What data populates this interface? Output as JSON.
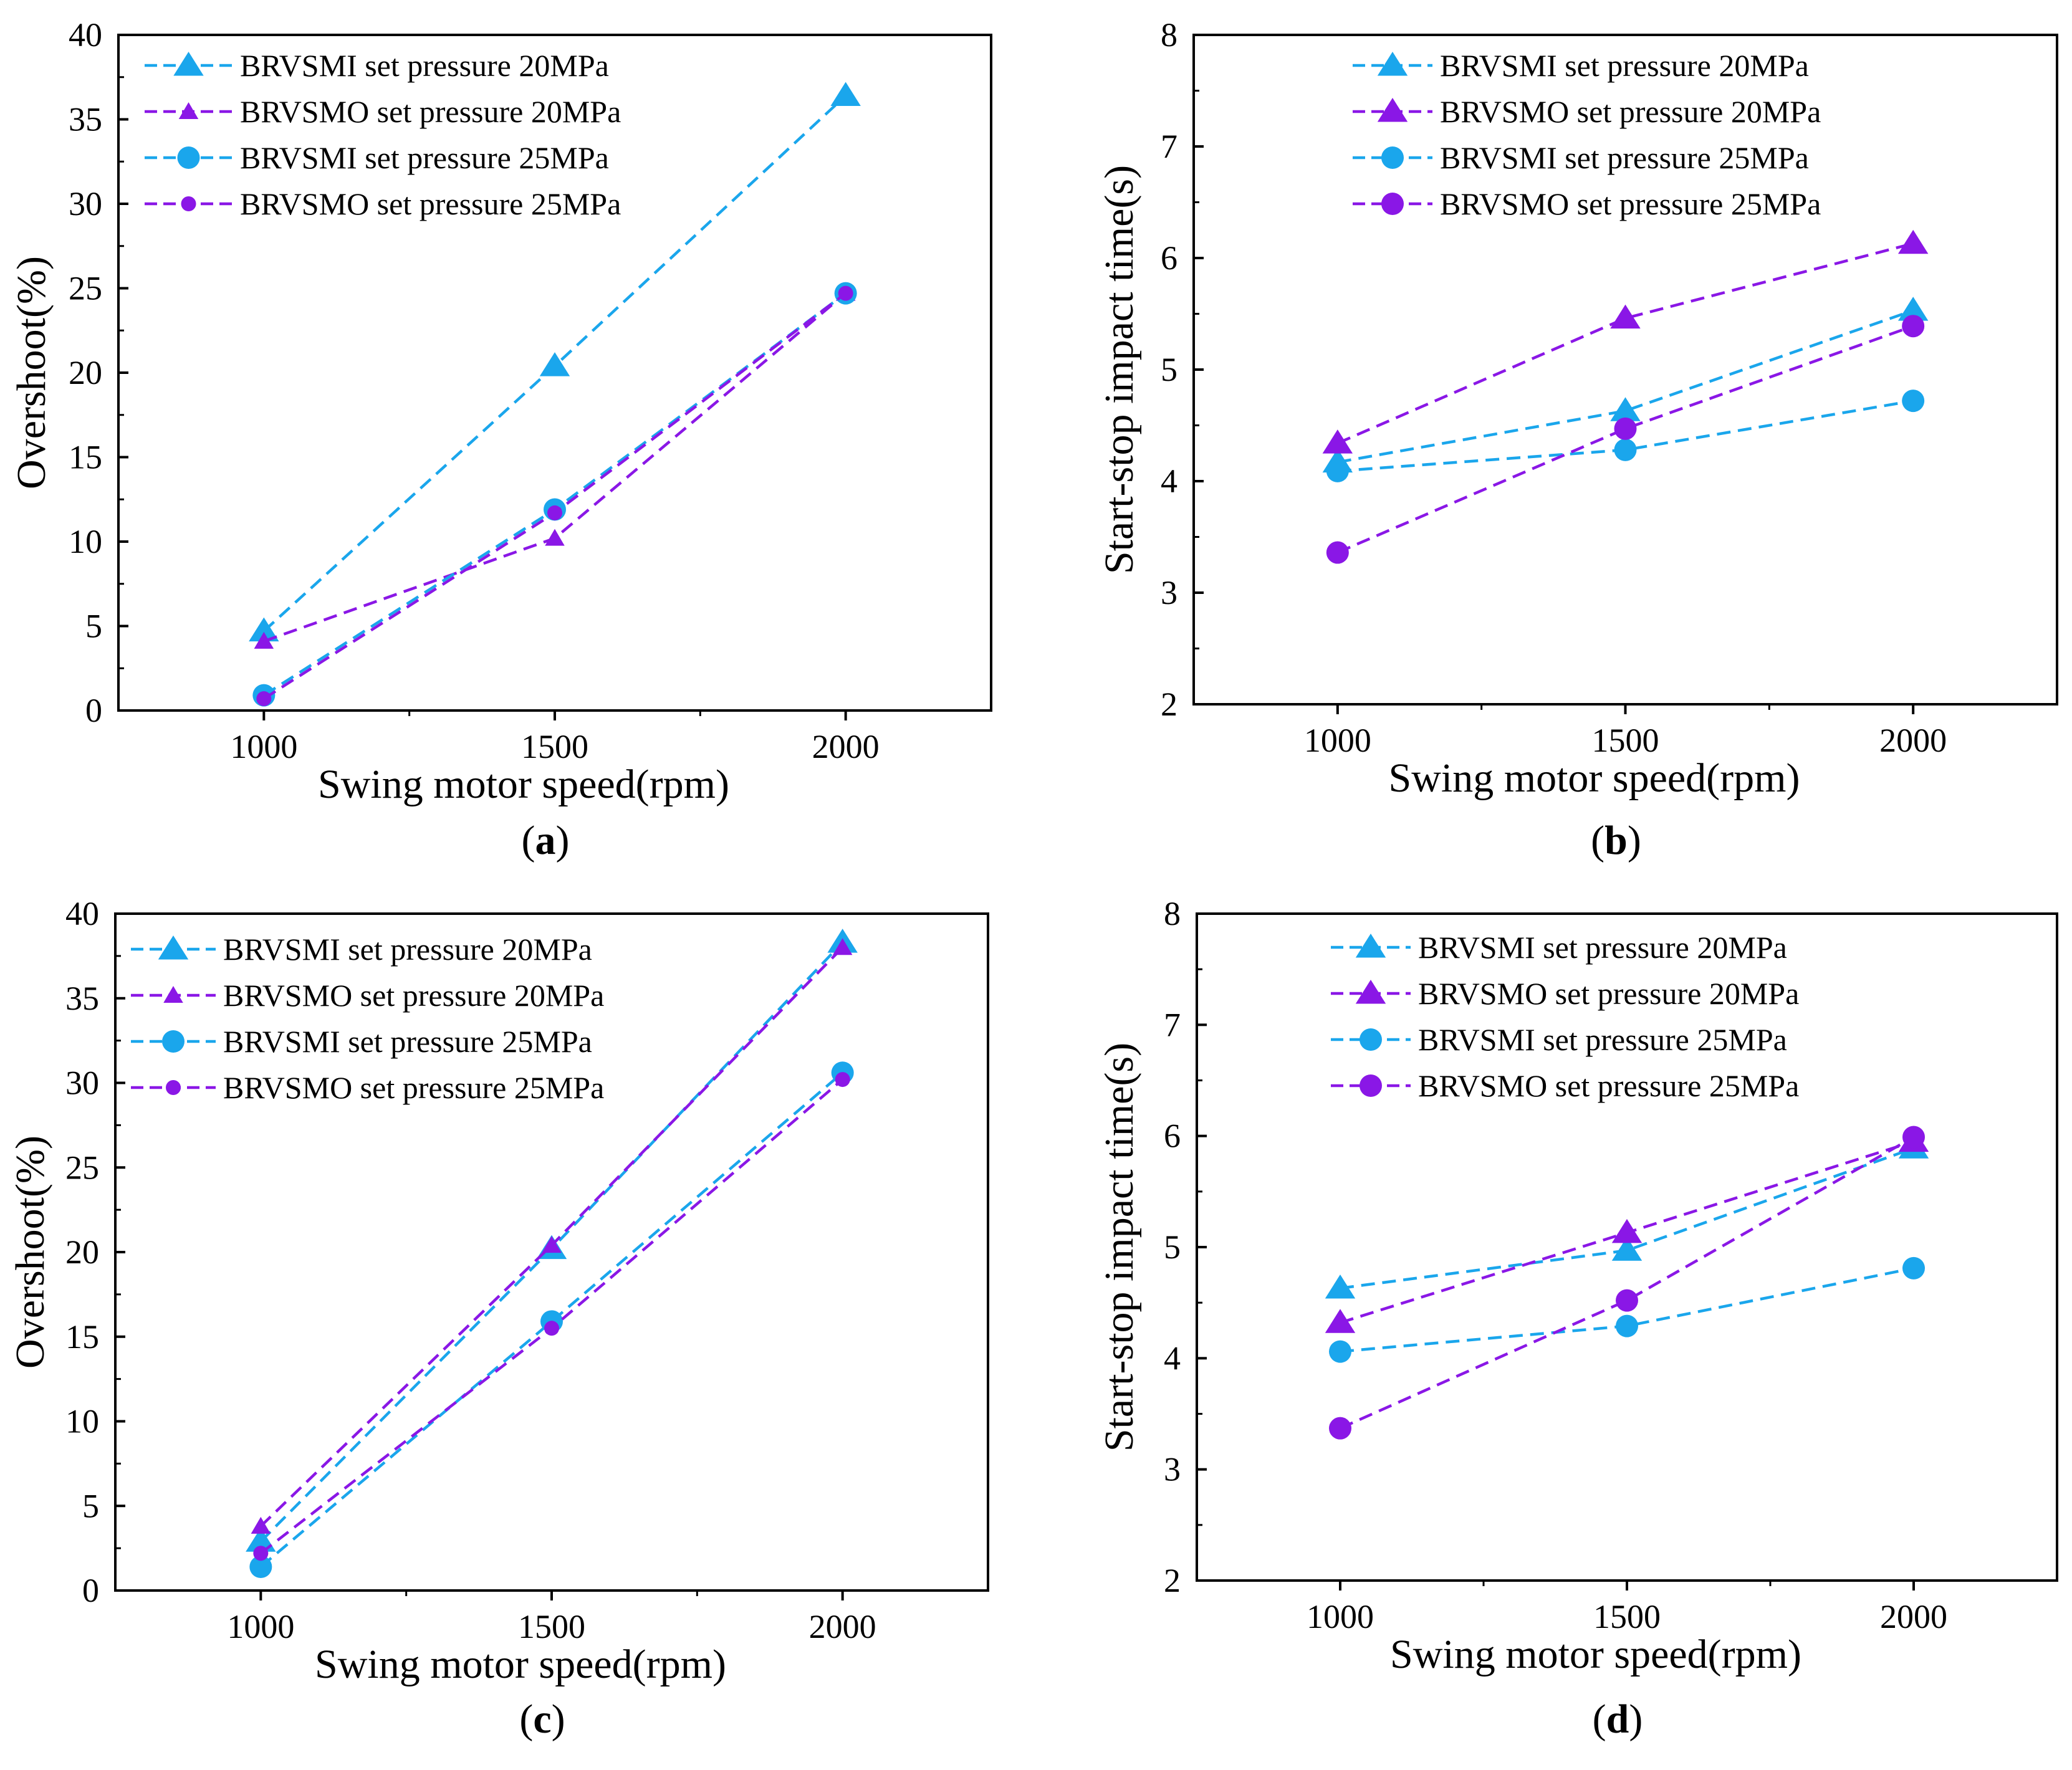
{
  "figure": {
    "colors": {
      "cyan": "#1aa6ec",
      "purple": "#8a17e6"
    },
    "chart_data": [
      {
        "id": "a",
        "type": "line",
        "panel_label": "a",
        "xlabel": "Swing motor speed(rpm)",
        "ylabel": "Overshoot(%)",
        "xlim": [
          750,
          2250
        ],
        "ylim": [
          0,
          40
        ],
        "xticks": [
          1000,
          1500,
          2000
        ],
        "yticks": [
          0,
          5,
          10,
          15,
          20,
          25,
          30,
          35,
          40
        ],
        "legend_position": "top-left",
        "series": [
          {
            "name": "BRVSMI set pressure 20MPa",
            "color": "cyan",
            "marker": "triangle",
            "x": [
              1000,
              1500,
              2000
            ],
            "values": [
              4.7,
              20.4,
              36.4
            ]
          },
          {
            "name": "BRVSMO set pressure 20MPa",
            "color": "purple",
            "marker": "triangle-small",
            "x": [
              1000,
              1500,
              2000
            ],
            "values": [
              4.1,
              10.2,
              24.7
            ]
          },
          {
            "name": "BRVSMI set pressure 25MPa",
            "color": "cyan",
            "marker": "circle",
            "x": [
              1000,
              1500,
              2000
            ],
            "values": [
              0.9,
              11.9,
              24.7
            ]
          },
          {
            "name": "BRVSMO set pressure 25MPa",
            "color": "purple",
            "marker": "circle-small",
            "x": [
              1000,
              1500,
              2000
            ],
            "values": [
              0.7,
              11.7,
              24.7
            ]
          }
        ]
      },
      {
        "id": "b",
        "type": "line",
        "panel_label": "b",
        "xlabel": "Swing motor speed(rpm)",
        "ylabel": "Start-stop impact time(s)",
        "xlim": [
          750,
          2250
        ],
        "ylim": [
          2,
          8
        ],
        "xticks": [
          1000,
          1500,
          2000
        ],
        "yticks": [
          2,
          3,
          4,
          5,
          6,
          7,
          8
        ],
        "legend_position": "top-center",
        "series": [
          {
            "name": "BRVSMI set pressure 20MPa",
            "color": "cyan",
            "marker": "triangle",
            "x": [
              1000,
              1500,
              2000
            ],
            "values": [
              4.17,
              4.63,
              5.53
            ]
          },
          {
            "name": "BRVSMO set pressure 20MPa",
            "color": "purple",
            "marker": "triangle",
            "x": [
              1000,
              1500,
              2000
            ],
            "values": [
              4.34,
              5.46,
              6.13
            ]
          },
          {
            "name": "BRVSMI set pressure 25MPa",
            "color": "cyan",
            "marker": "circle",
            "x": [
              1000,
              1500,
              2000
            ],
            "values": [
              4.09,
              4.28,
              4.72
            ]
          },
          {
            "name": "BRVSMO set pressure 25MPa",
            "color": "purple",
            "marker": "circle",
            "x": [
              1000,
              1500,
              2000
            ],
            "values": [
              3.36,
              4.47,
              5.39
            ]
          }
        ]
      },
      {
        "id": "c",
        "type": "line",
        "panel_label": "c",
        "xlabel": "Swing motor speed(rpm)",
        "ylabel": "Overshoot(%)",
        "xlim": [
          750,
          2250
        ],
        "ylim": [
          0,
          40
        ],
        "xticks": [
          1000,
          1500,
          2000
        ],
        "yticks": [
          0,
          5,
          10,
          15,
          20,
          25,
          30,
          35,
          40
        ],
        "legend_position": "top-left",
        "series": [
          {
            "name": "BRVSMI set pressure 20MPa",
            "color": "cyan",
            "marker": "triangle",
            "x": [
              1000,
              1500,
              2000
            ],
            "values": [
              2.9,
              20.2,
              38.3
            ]
          },
          {
            "name": "BRVSMO set pressure 20MPa",
            "color": "purple",
            "marker": "triangle-small",
            "x": [
              1000,
              1500,
              2000
            ],
            "values": [
              3.8,
              20.4,
              38.0
            ]
          },
          {
            "name": "BRVSMI set pressure 25MPa",
            "color": "cyan",
            "marker": "circle",
            "x": [
              1000,
              1500,
              2000
            ],
            "values": [
              1.4,
              15.9,
              30.6
            ]
          },
          {
            "name": "BRVSMO set pressure 25MPa",
            "color": "purple",
            "marker": "circle-small",
            "x": [
              1000,
              1500,
              2000
            ],
            "values": [
              2.2,
              15.5,
              30.2
            ]
          }
        ]
      },
      {
        "id": "d",
        "type": "line",
        "panel_label": "d",
        "xlabel": "Swing motor speed(rpm)",
        "ylabel": "Start-stop impact time(s)",
        "xlim": [
          750,
          2250
        ],
        "ylim": [
          2,
          8
        ],
        "xticks": [
          1000,
          1500,
          2000
        ],
        "yticks": [
          2,
          3,
          4,
          5,
          6,
          7,
          8
        ],
        "legend_position": "top-center",
        "series": [
          {
            "name": "BRVSMI set pressure 20MPa",
            "color": "cyan",
            "marker": "triangle",
            "x": [
              1000,
              1500,
              2000
            ],
            "values": [
              4.63,
              4.97,
              5.89
            ]
          },
          {
            "name": "BRVSMO set pressure 20MPa",
            "color": "purple",
            "marker": "triangle",
            "x": [
              1000,
              1500,
              2000
            ],
            "values": [
              4.32,
              5.13,
              5.95
            ]
          },
          {
            "name": "BRVSMI set pressure 25MPa",
            "color": "cyan",
            "marker": "circle",
            "x": [
              1000,
              1500,
              2000
            ],
            "values": [
              4.06,
              4.29,
              4.81
            ]
          },
          {
            "name": "BRVSMO set pressure 25MPa",
            "color": "purple",
            "marker": "circle",
            "x": [
              1000,
              1500,
              2000
            ],
            "values": [
              3.37,
              4.52,
              5.99
            ]
          }
        ]
      }
    ]
  }
}
